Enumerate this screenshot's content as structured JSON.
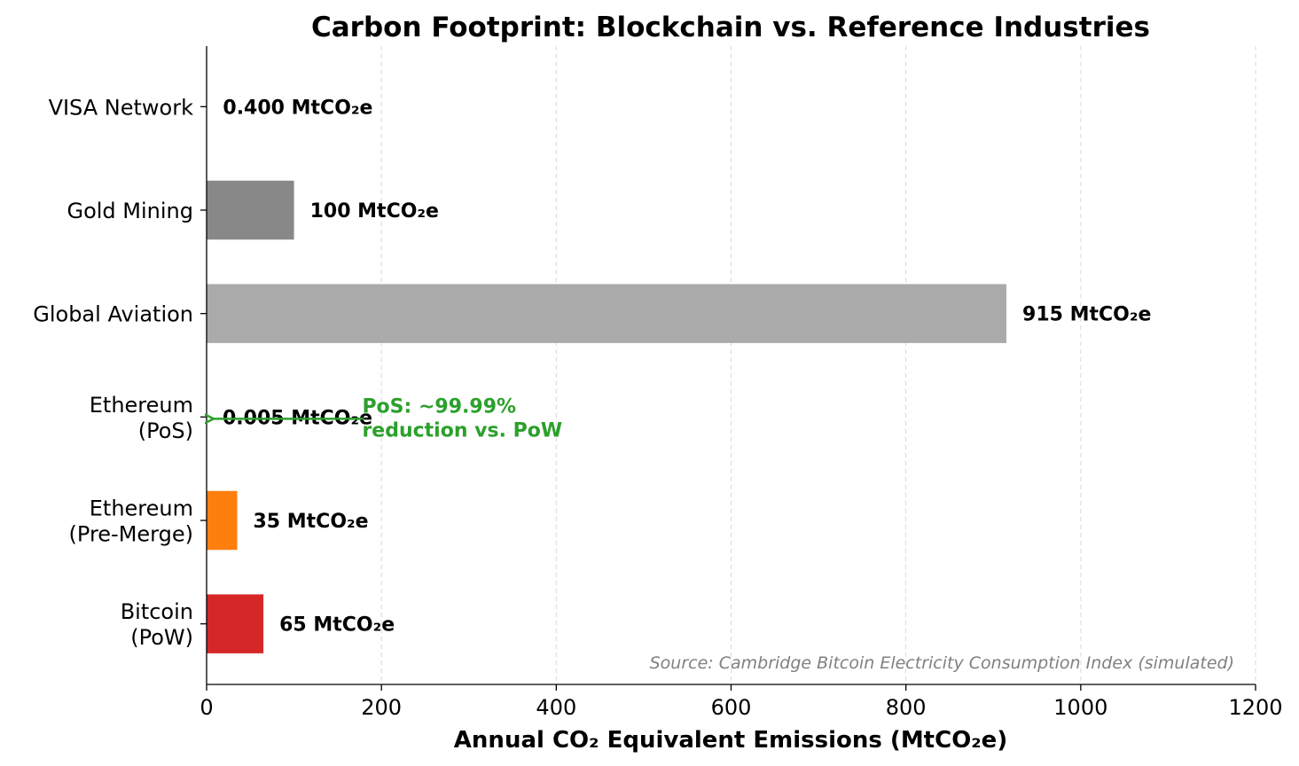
{
  "chart_data": {
    "type": "bar",
    "orientation": "horizontal",
    "title": "Carbon Footprint: Blockchain vs. Reference Industries",
    "xlabel": "Annual CO₂ Equivalent Emissions (MtCO₂e)",
    "ylabel": "",
    "xlim": [
      0,
      1200
    ],
    "xticks": [
      "0",
      "200",
      "400",
      "600",
      "800",
      "1000",
      "1200"
    ],
    "grid": "x-dashed",
    "categories": [
      "VISA Network",
      "Gold Mining",
      "Global Aviation",
      "Ethereum\n(PoS)",
      "Ethereum\n(Pre-Merge)",
      "Bitcoin\n(PoW)"
    ],
    "values": [
      0.4,
      100,
      915,
      0.005,
      35,
      65
    ],
    "value_labels": [
      "0.400 MtCO₂e",
      "100 MtCO₂e",
      "915 MtCO₂e",
      "0.005 MtCO₂e",
      "35 MtCO₂e",
      "65 MtCO₂e"
    ],
    "colors": [
      "#cccccc",
      "#888888",
      "#aaaaaa",
      "#2ca02c",
      "#ff7f0e",
      "#d62728"
    ],
    "annotation": {
      "text": [
        "PoS: ~99.99%",
        "reduction vs. PoW"
      ],
      "color": "#2ca02c",
      "arrow_from_x": 180,
      "arrow_to_x": 5,
      "category_index": 3
    },
    "source_note": "Source: Cambridge Bitcoin Electricity Consumption Index (simulated)"
  }
}
